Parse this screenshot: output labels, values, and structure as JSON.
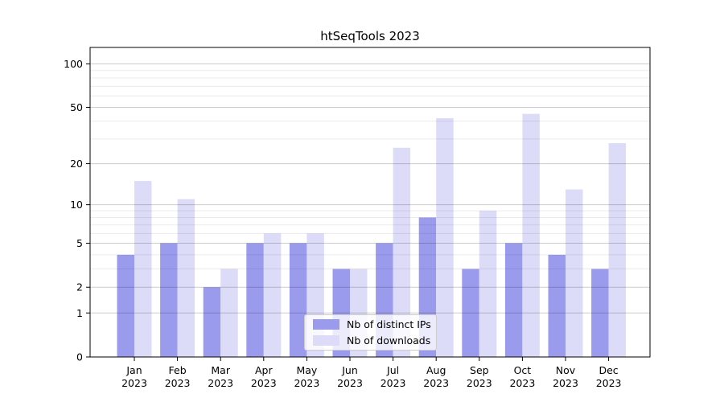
{
  "figure": {
    "background_color": "#ffffff"
  },
  "chart_data": {
    "type": "bar",
    "title": "htSeqTools 2023",
    "categories": [
      "Jan",
      "Feb",
      "Mar",
      "Apr",
      "May",
      "Jun",
      "Jul",
      "Aug",
      "Sep",
      "Oct",
      "Nov",
      "Dec"
    ],
    "x_tick_second_line": "2023",
    "series": [
      {
        "name": "Nb of distinct IPs",
        "color": "#9b9bee",
        "values": [
          4,
          5,
          2,
          5,
          5,
          3,
          5,
          8,
          3,
          5,
          4,
          3
        ]
      },
      {
        "name": "Nb of downloads",
        "color": "#dcdcf8",
        "values": [
          15,
          11,
          3,
          6,
          6,
          3,
          26,
          42,
          9,
          45,
          13,
          28
        ]
      }
    ],
    "yscale": "log1p",
    "ylim": [
      0,
      130
    ],
    "yticks_major": [
      0,
      1,
      2,
      5,
      10,
      20,
      50,
      100
    ],
    "yticks_minor": [
      3,
      4,
      6,
      7,
      8,
      9,
      30,
      40,
      60,
      70,
      80,
      90
    ],
    "grid": "on",
    "grid_major_color": "rgba(0,0,0,0.20)",
    "grid_minor_color": "rgba(0,0,0,0.08)",
    "axis_color": "#000000",
    "legend_position": "lower center"
  }
}
